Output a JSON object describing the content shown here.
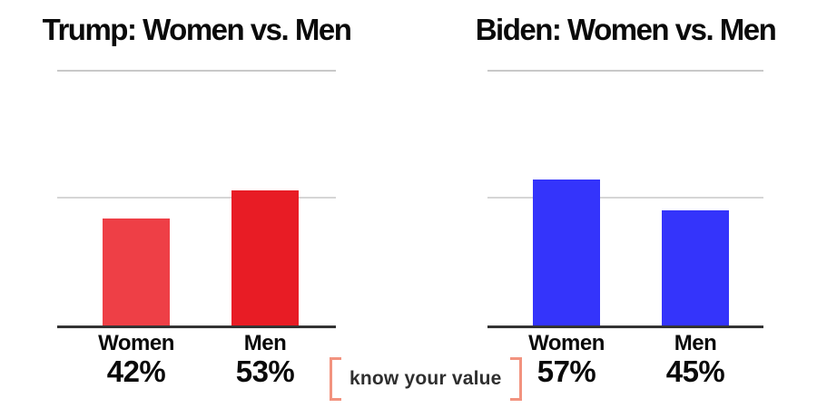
{
  "chart_data": [
    {
      "type": "bar",
      "title": "Trump: Women vs. Men",
      "categories": [
        "Women",
        "Men"
      ],
      "values": [
        42,
        53
      ],
      "value_labels": [
        "42%",
        "53%"
      ],
      "bar_colors": [
        "#ee3f46",
        "#e81c25"
      ],
      "ylim": [
        0,
        100
      ],
      "gridlines_pct": [
        50,
        100
      ],
      "grid_on": true,
      "legend_position": "none",
      "xlabel": "",
      "ylabel": ""
    },
    {
      "type": "bar",
      "title": "Biden: Women vs. Men",
      "categories": [
        "Women",
        "Men"
      ],
      "values": [
        57,
        45
      ],
      "value_labels": [
        "57%",
        "45%"
      ],
      "bar_colors": [
        "#3434fb",
        "#3434fb"
      ],
      "ylim": [
        0,
        100
      ],
      "gridlines_pct": [
        50,
        100
      ],
      "grid_on": true,
      "legend_position": "none",
      "xlabel": "",
      "ylabel": ""
    }
  ],
  "branding": {
    "logo_text": "know your value",
    "bracket_color": "#f2937f",
    "text_color": "#2f2f2f"
  },
  "colors": {
    "background": "#ffffff",
    "axis": "#333333",
    "gridline": "#c9c9c9",
    "title": "#0a0a0a"
  }
}
